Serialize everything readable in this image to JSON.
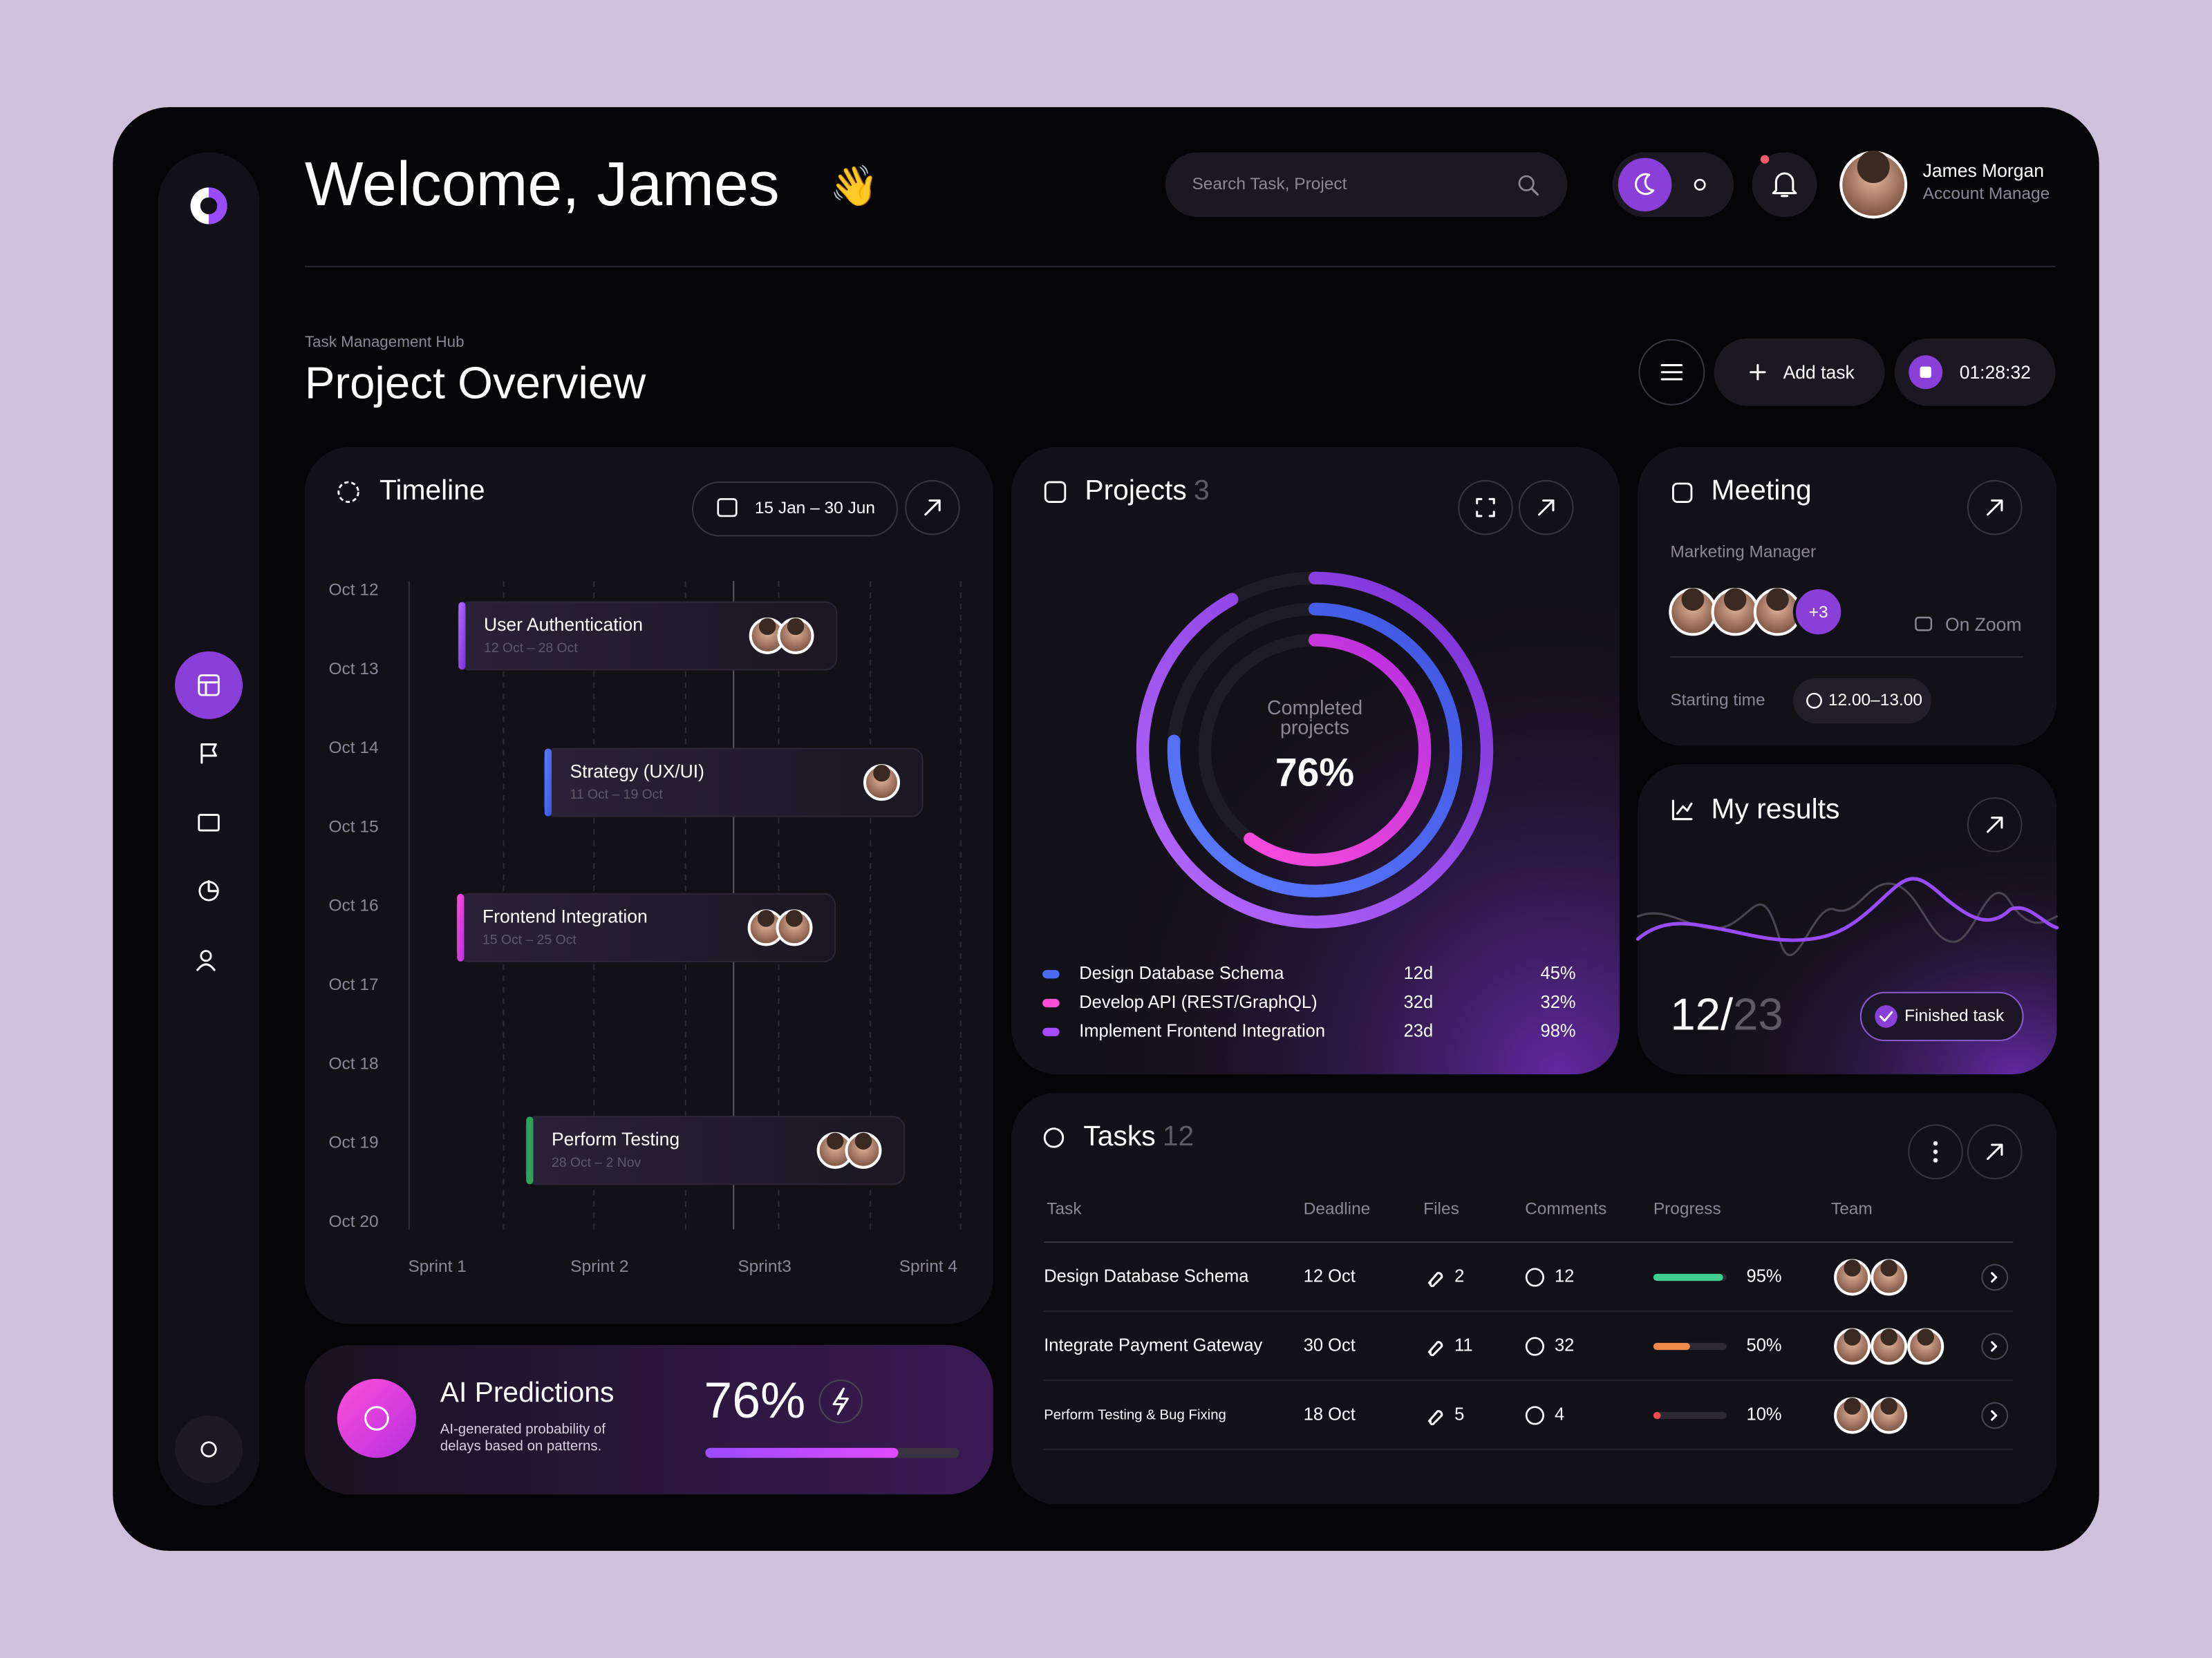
{
  "header": {
    "title": "Welcome, James",
    "emoji": "👋",
    "search_placeholder": "Search Task, Project",
    "user": {
      "name": "James Morgan",
      "role": "Account Manage"
    }
  },
  "overview": {
    "eyebrow": "Task Management Hub",
    "title": "Project Overview",
    "add_task": "Add task",
    "timer": "01:28:32"
  },
  "timeline": {
    "title": "Timeline",
    "date_range": "15 Jan – 30 Jun",
    "rows": [
      "Oct 12",
      "Oct 13",
      "Oct 14",
      "Oct 15",
      "Oct 16",
      "Oct 17",
      "Oct 18",
      "Oct 19",
      "Oct 20"
    ],
    "sprints": [
      "Sprint 1",
      "Sprint 2",
      "Sprint3",
      "Sprint 4"
    ],
    "tasks": [
      {
        "name": "User Authentication",
        "dates": "12 Oct – 28 Oct"
      },
      {
        "name": "Strategy (UX/UI)",
        "dates": "11 Oct – 19 Oct"
      },
      {
        "name": "Frontend Integration",
        "dates": "15 Oct – 25 Oct"
      },
      {
        "name": "Perform Testing",
        "dates": "28 Oct – 2 Nov"
      }
    ]
  },
  "ai_predictions": {
    "title": "AI Predictions",
    "description": [
      "AI-generated probability of",
      "delays based on patterns."
    ],
    "value": 76,
    "value_label": "76%"
  },
  "projects": {
    "title": "Projects",
    "count": 3,
    "center_label": [
      "Completed",
      "projects"
    ],
    "center_value": "76%",
    "items": [
      {
        "name": "Design Database Schema",
        "duration": "12d",
        "percent": "45%"
      },
      {
        "name": "Develop API (REST/GraphQL)",
        "duration": "32d",
        "percent": "32%"
      },
      {
        "name": "Implement Frontend Integration",
        "duration": "23d",
        "percent": "98%"
      }
    ]
  },
  "meeting": {
    "title": "Meeting",
    "role": "Marketing Manager",
    "extra": "+3",
    "location": "On Zoom",
    "start_label": "Starting time",
    "time": "12.00–13.00"
  },
  "results": {
    "title": "My results",
    "done": "12/",
    "total": "23",
    "badge": "Finished task"
  },
  "tasks": {
    "title": "Tasks",
    "count": 12,
    "columns": [
      "Task",
      "Deadline",
      "Files",
      "Comments",
      "Progress",
      "Team"
    ],
    "rows": [
      {
        "name": "Design Database Schema",
        "deadline": "12 Oct",
        "files": 2,
        "comments": 12,
        "progress": 95,
        "progress_label": "95%"
      },
      {
        "name": "Integrate Payment Gateway",
        "deadline": "30 Oct",
        "files": 11,
        "comments": 32,
        "progress": 50,
        "progress_label": "50%"
      },
      {
        "name": "Perform Testing & Bug Fixing",
        "deadline": "18 Oct",
        "files": 5,
        "comments": 4,
        "progress": 10,
        "progress_label": "10%"
      }
    ]
  }
}
